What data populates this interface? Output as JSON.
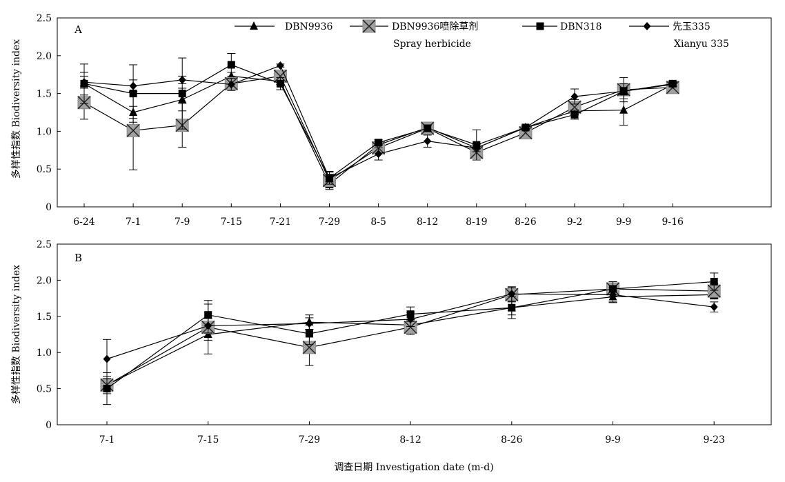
{
  "figure": {
    "ylabel": "多样性指数 Biodiversity index",
    "xlabel": "调查日期 Investigation date (m-d)"
  },
  "legend": {
    "items": [
      {
        "series": "DBN9936",
        "label": "DBN9936",
        "sublabel": ""
      },
      {
        "series": "DBN9936喷除草剂",
        "label": "DBN9936喷除草剂",
        "sublabel": "Spray herbicide"
      },
      {
        "series": "DBN318",
        "label": "DBN318",
        "sublabel": ""
      },
      {
        "series": "先玉335",
        "label": "先玉335",
        "sublabel": "Xianyu 335"
      }
    ]
  },
  "chart_data": [
    {
      "type": "line",
      "panel_label": "A",
      "categories": [
        "6-24",
        "7-1",
        "7-9",
        "7-15",
        "7-21",
        "7-29",
        "8-5",
        "8-12",
        "8-19",
        "8-26",
        "9-2",
        "9-9",
        "9-16"
      ],
      "ylim": [
        0,
        2.5
      ],
      "yticks": [
        "0",
        "0.5",
        "1.0",
        "1.5",
        "2.0",
        "2.5"
      ],
      "grid": false,
      "legend_position": "top",
      "series": [
        {
          "name": "DBN9936",
          "marker": "triangle",
          "values": [
            1.63,
            1.25,
            1.42,
            1.73,
            1.66,
            0.3,
            0.82,
            1.05,
            0.78,
            1.05,
            1.27,
            1.28,
            1.62
          ],
          "errors": [
            0.15,
            0.08,
            0.15,
            0.05,
            0.04,
            0.05,
            0.05,
            0.03,
            0.05,
            0.03,
            0.05,
            0.2,
            0.03
          ]
        },
        {
          "name": "DBN9936喷除草剂",
          "marker": "x-square",
          "values": [
            1.38,
            1.01,
            1.08,
            1.63,
            1.73,
            0.35,
            0.78,
            1.04,
            0.72,
            0.98,
            1.32,
            1.55,
            1.58
          ],
          "errors": [
            0.22,
            0.52,
            0.29,
            0.08,
            0.08,
            0.12,
            0.06,
            0.04,
            0.08,
            0.04,
            0.1,
            0.16,
            0.05
          ]
        },
        {
          "name": "DBN318",
          "marker": "square",
          "values": [
            1.63,
            1.5,
            1.5,
            1.88,
            1.63,
            0.38,
            0.85,
            1.04,
            0.82,
            1.05,
            1.22,
            1.53,
            1.63
          ],
          "errors": [
            0.26,
            0.38,
            0.47,
            0.15,
            0.08,
            0.08,
            0.04,
            0.04,
            0.2,
            0.03,
            0.06,
            0.1,
            0.03
          ]
        },
        {
          "name": "先玉335",
          "marker": "diamond",
          "values": [
            1.65,
            1.6,
            1.68,
            1.62,
            1.87,
            0.38,
            0.7,
            0.87,
            0.78,
            1.05,
            1.46,
            1.53,
            1.62
          ],
          "errors": [
            0.08,
            0.08,
            0.05,
            0.08,
            0.02,
            0.05,
            0.08,
            0.08,
            0.05,
            0.03,
            0.1,
            0.05,
            0.03
          ]
        }
      ]
    },
    {
      "type": "line",
      "panel_label": "B",
      "categories": [
        "7-1",
        "7-15",
        "7-29",
        "8-12",
        "8-26",
        "9-9",
        "9-23"
      ],
      "ylim": [
        0,
        2.5
      ],
      "yticks": [
        "0",
        "0.5",
        "1.0",
        "1.5",
        "2.0",
        "2.5"
      ],
      "grid": false,
      "series": [
        {
          "name": "DBN9936",
          "marker": "triangle",
          "values": [
            0.55,
            1.25,
            1.42,
            1.38,
            1.62,
            1.77,
            1.8
          ],
          "errors": [
            0.08,
            0.08,
            0.1,
            0.08,
            0.1,
            0.08,
            0.06
          ]
        },
        {
          "name": "DBN9936喷除草剂",
          "marker": "x-square",
          "values": [
            0.55,
            1.35,
            1.07,
            1.35,
            1.8,
            1.88,
            1.85
          ],
          "errors": [
            0.12,
            0.37,
            0.25,
            0.1,
            0.1,
            0.05,
            0.1
          ]
        },
        {
          "name": "DBN318",
          "marker": "square",
          "values": [
            0.5,
            1.52,
            1.26,
            1.53,
            1.62,
            1.88,
            1.98
          ],
          "errors": [
            0.22,
            0.15,
            0.15,
            0.1,
            0.15,
            0.1,
            0.12
          ]
        },
        {
          "name": "先玉335",
          "marker": "diamond",
          "values": [
            0.91,
            1.37,
            1.4,
            1.46,
            1.81,
            1.8,
            1.63
          ],
          "errors": [
            0.27,
            0.1,
            0.08,
            0.1,
            0.1,
            0.1,
            0.07
          ]
        }
      ]
    }
  ]
}
